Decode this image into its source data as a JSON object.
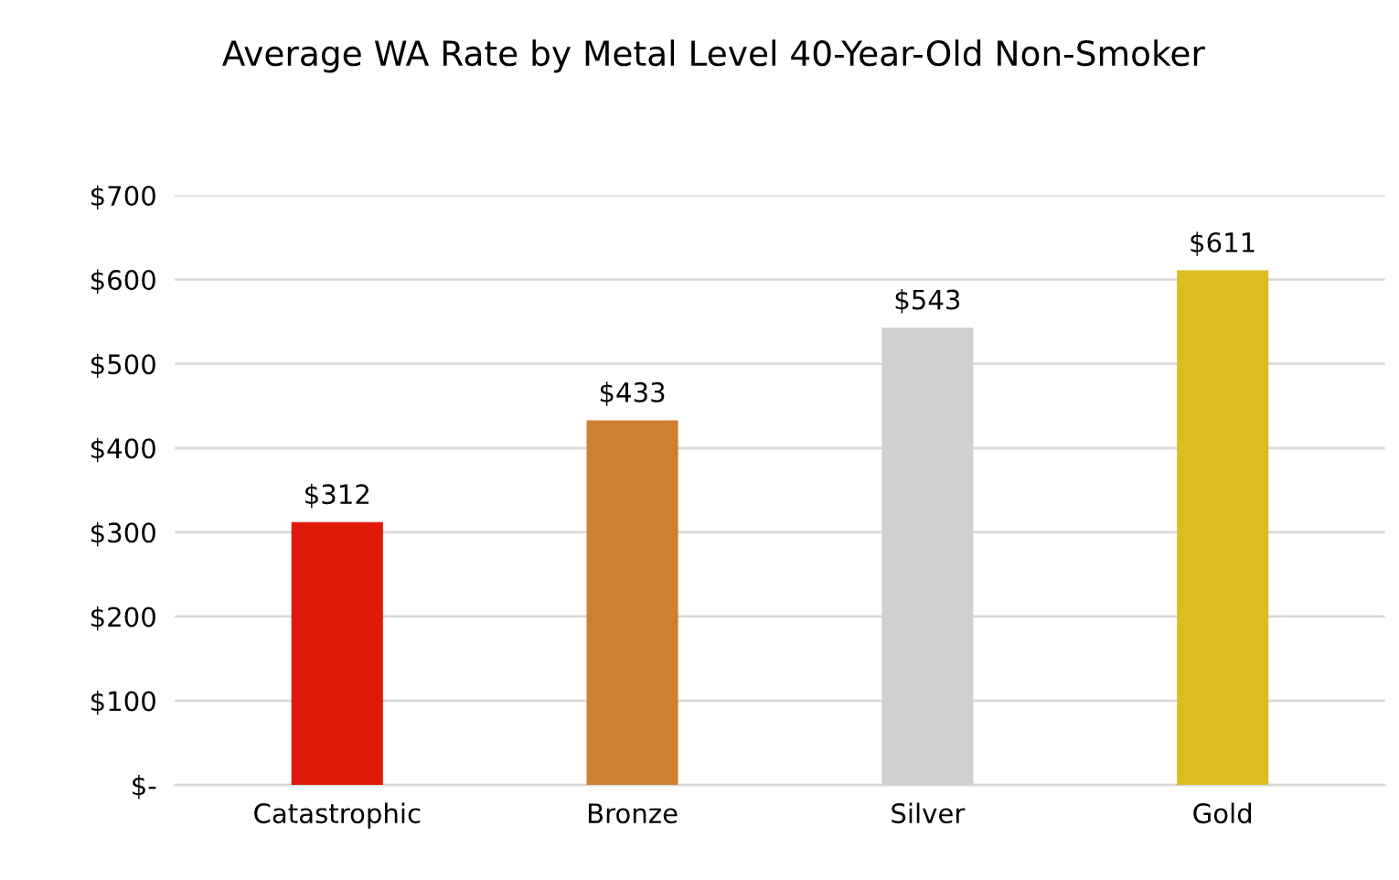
{
  "chart_data": {
    "type": "bar",
    "title": "Average WA Rate by Metal Level 40-Year-Old Non-Smoker",
    "categories": [
      "Catastrophic",
      "Bronze",
      "Silver",
      "Gold"
    ],
    "values": [
      312,
      433,
      543,
      611
    ],
    "colors": [
      "#e0190a",
      "#cd7f32",
      "#d0d0d0",
      "#dcbc20"
    ],
    "value_labels": [
      "$312",
      "$433",
      "$543",
      "$611"
    ],
    "ylim": [
      0,
      700
    ],
    "yticks": [
      {
        "value": 0,
        "label": "$-"
      },
      {
        "value": 100,
        "label": "$100"
      },
      {
        "value": 200,
        "label": "$200"
      },
      {
        "value": 300,
        "label": "$300"
      },
      {
        "value": 400,
        "label": "$400"
      },
      {
        "value": 500,
        "label": "$500"
      },
      {
        "value": 600,
        "label": "$600"
      },
      {
        "value": 700,
        "label": "$700"
      }
    ],
    "grid": "y",
    "legend": false
  }
}
